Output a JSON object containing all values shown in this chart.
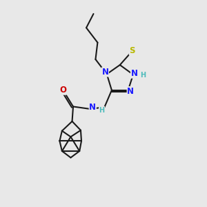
{
  "background_color": "#e8e8e8",
  "figsize": [
    3.0,
    3.0
  ],
  "dpi": 100,
  "bond_color": "#1a1a1a",
  "bond_lw": 1.5,
  "N_color": "#1a1aff",
  "O_color": "#cc0000",
  "S_color": "#b8b800",
  "H_color": "#4dbbbb",
  "font_size": 8.5,
  "font_size_H": 7.0,
  "xlim": [
    0,
    10
  ],
  "ylim": [
    0,
    10
  ]
}
